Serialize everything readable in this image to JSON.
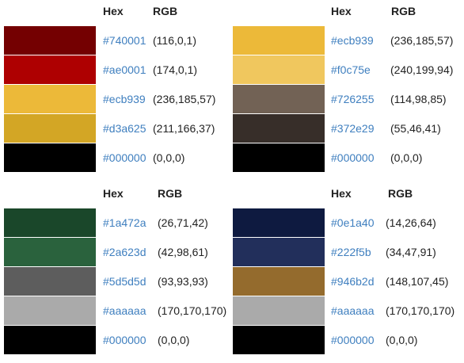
{
  "palettes": [
    {
      "hex_header": "Hex",
      "rgb_header": "RGB",
      "colors": [
        {
          "hex": "#740001",
          "rgb": "(116,0,1)"
        },
        {
          "hex": "#ae0001",
          "rgb": "(174,0,1)"
        },
        {
          "hex": "#ecb939",
          "rgb": "(236,185,57)"
        },
        {
          "hex": "#d3a625",
          "rgb": "(211,166,37)"
        },
        {
          "hex": "#000000",
          "rgb": "(0,0,0)"
        }
      ]
    },
    {
      "hex_header": "Hex",
      "rgb_header": "RGB",
      "colors": [
        {
          "hex": "#ecb939",
          "rgb": "(236,185,57)"
        },
        {
          "hex": "#f0c75e",
          "rgb": "(240,199,94)"
        },
        {
          "hex": "#726255",
          "rgb": "(114,98,85)"
        },
        {
          "hex": "#372e29",
          "rgb": "(55,46,41)"
        },
        {
          "hex": "#000000",
          "rgb": "(0,0,0)"
        }
      ]
    },
    {
      "hex_header": "Hex",
      "rgb_header": "RGB",
      "colors": [
        {
          "hex": "#1a472a",
          "rgb": "(26,71,42)"
        },
        {
          "hex": "#2a623d",
          "rgb": "(42,98,61)"
        },
        {
          "hex": "#5d5d5d",
          "rgb": "(93,93,93)"
        },
        {
          "hex": "#aaaaaa",
          "rgb": "(170,170,170)"
        },
        {
          "hex": "#000000",
          "rgb": "(0,0,0)"
        }
      ]
    },
    {
      "hex_header": "Hex",
      "rgb_header": "RGB",
      "colors": [
        {
          "hex": "#0e1a40",
          "rgb": "(14,26,64)"
        },
        {
          "hex": "#222f5b",
          "rgb": "(34,47,91)"
        },
        {
          "hex": "#946b2d",
          "rgb": "(148,107,45)"
        },
        {
          "hex": "#aaaaaa",
          "rgb": "(170,170,170)"
        },
        {
          "hex": "#000000",
          "rgb": "(0,0,0)"
        }
      ]
    }
  ],
  "link_color": "#3f7fbf"
}
